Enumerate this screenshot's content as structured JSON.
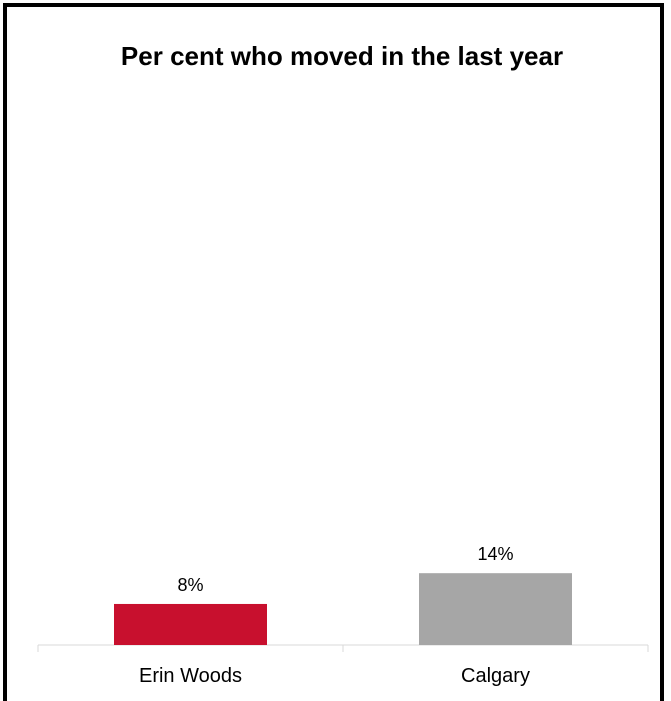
{
  "chart_data": {
    "type": "bar",
    "title": "Per cent who moved in the last year",
    "categories": [
      "Erin Woods",
      "Calgary"
    ],
    "values": [
      8,
      14
    ],
    "data_labels": [
      "8%",
      "14%"
    ],
    "colors": [
      "#c8102e",
      "#a6a6a6"
    ],
    "ylim": [
      0,
      100
    ],
    "xlabel": "",
    "ylabel": "",
    "grid": false,
    "legend": "none"
  }
}
